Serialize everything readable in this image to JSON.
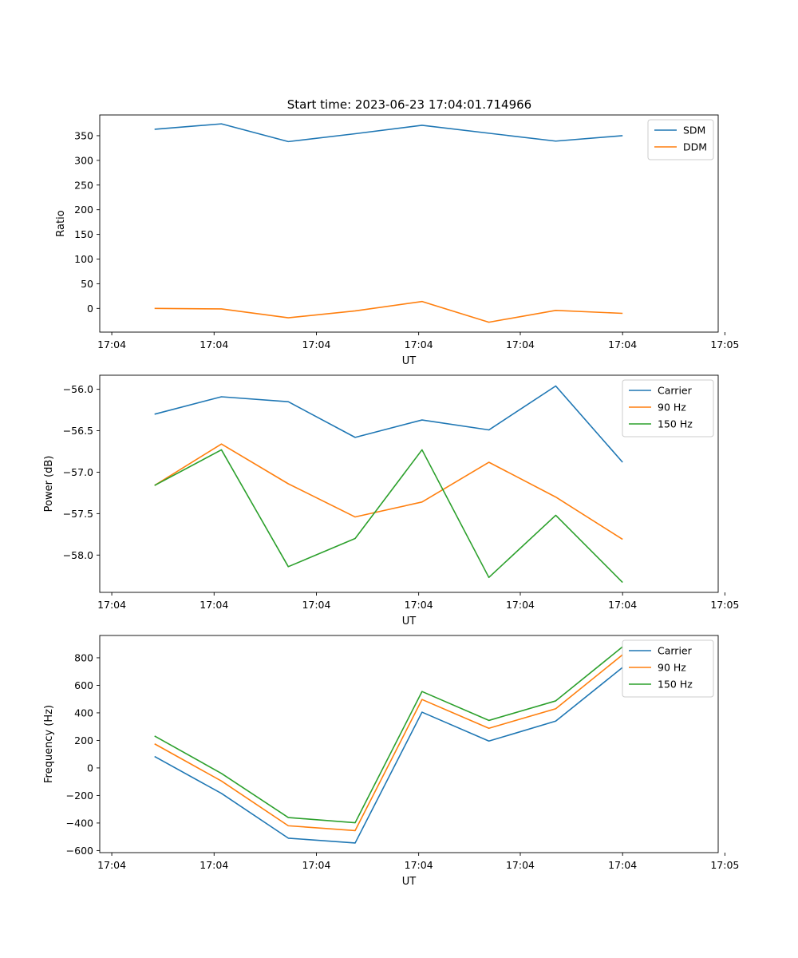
{
  "figure": {
    "title": "Start time: 2023-06-23 17:04:01.714966"
  },
  "chart_data": [
    {
      "type": "line",
      "title": "Start time: 2023-06-23 17:04:01.714966",
      "xlabel": "UT",
      "ylabel": "Ratio",
      "x": [
        1,
        2,
        3,
        4,
        5,
        6,
        7,
        8
      ],
      "xlim": [
        0.18,
        9.43
      ],
      "x_ticks": [
        0.36,
        1.89,
        3.42,
        4.95,
        6.47,
        8.0,
        9.53
      ],
      "x_tick_labels": [
        "17:04",
        "17:04",
        "17:04",
        "17:04",
        "17:04",
        "17:04",
        "17:05"
      ],
      "ylim": [
        -48,
        392
      ],
      "y_ticks": [
        0,
        50,
        100,
        150,
        200,
        250,
        300,
        350
      ],
      "y_tick_labels": [
        "0",
        "50",
        "100",
        "150",
        "200",
        "250",
        "300",
        "350"
      ],
      "grid": false,
      "legend_position": "top-right",
      "series": [
        {
          "name": "SDM",
          "color": "#1f77b4",
          "values": [
            363,
            374,
            338,
            354,
            371,
            355,
            339,
            350
          ]
        },
        {
          "name": "DDM",
          "color": "#ff7f0e",
          "values": [
            0,
            -1,
            -19,
            -5,
            14,
            -28,
            -4,
            -10
          ]
        }
      ]
    },
    {
      "type": "line",
      "title": "",
      "xlabel": "UT",
      "ylabel": "Power (dB)",
      "x": [
        1,
        2,
        3,
        4,
        5,
        6,
        7,
        8
      ],
      "xlim": [
        0.18,
        9.43
      ],
      "x_ticks": [
        0.36,
        1.89,
        3.42,
        4.95,
        6.47,
        8.0,
        9.53
      ],
      "x_tick_labels": [
        "17:04",
        "17:04",
        "17:04",
        "17:04",
        "17:04",
        "17:04",
        "17:05"
      ],
      "ylim": [
        -58.45,
        -55.83
      ],
      "y_ticks": [
        -58.0,
        -57.5,
        -57.0,
        -56.5,
        -56.0
      ],
      "y_tick_labels": [
        "−58.0",
        "−57.5",
        "−57.0",
        "−56.5",
        "−56.0"
      ],
      "grid": false,
      "legend_position": "top-right",
      "series": [
        {
          "name": "Carrier",
          "color": "#1f77b4",
          "values": [
            -56.3,
            -56.09,
            -56.15,
            -56.58,
            -56.37,
            -56.49,
            -55.96,
            -56.88
          ]
        },
        {
          "name": "90 Hz",
          "color": "#ff7f0e",
          "values": [
            -57.16,
            -56.66,
            -57.14,
            -57.54,
            -57.36,
            -56.88,
            -57.3,
            -57.81
          ]
        },
        {
          "name": "150 Hz",
          "color": "#2ca02c",
          "values": [
            -57.16,
            -56.73,
            -58.14,
            -57.8,
            -56.73,
            -58.27,
            -57.52,
            -58.33
          ]
        }
      ]
    },
    {
      "type": "line",
      "title": "",
      "xlabel": "UT",
      "ylabel": "Frequency (Hz)",
      "x": [
        1,
        2,
        3,
        4,
        5,
        6,
        7,
        8
      ],
      "xlim": [
        0.18,
        9.43
      ],
      "x_ticks": [
        0.36,
        1.89,
        3.42,
        4.95,
        6.47,
        8.0,
        9.53
      ],
      "x_tick_labels": [
        "17:04",
        "17:04",
        "17:04",
        "17:04",
        "17:04",
        "17:04",
        "17:05"
      ],
      "ylim": [
        -615,
        962
      ],
      "y_ticks": [
        -600,
        -400,
        -200,
        0,
        200,
        400,
        600,
        800
      ],
      "y_tick_labels": [
        "−600",
        "−400",
        "−200",
        "0",
        "200",
        "400",
        "600",
        "800"
      ],
      "grid": false,
      "legend_position": "top-right",
      "series": [
        {
          "name": "Carrier",
          "color": "#1f77b4",
          "values": [
            83,
            -185,
            -510,
            -545,
            405,
            195,
            340,
            730
          ]
        },
        {
          "name": "90 Hz",
          "color": "#ff7f0e",
          "values": [
            175,
            -95,
            -420,
            -455,
            497,
            288,
            430,
            822
          ]
        },
        {
          "name": "150 Hz",
          "color": "#2ca02c",
          "values": [
            232,
            -40,
            -360,
            -398,
            555,
            345,
            487,
            880
          ]
        }
      ]
    }
  ]
}
